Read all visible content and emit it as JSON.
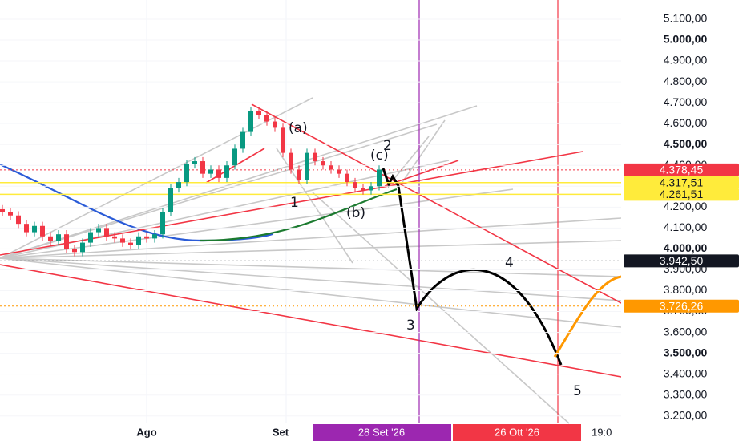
{
  "chart_data": {
    "type": "candlestick",
    "open": [
      4190,
      4175,
      4160,
      4120,
      4080,
      4110,
      4060,
      4040,
      4070,
      4000,
      3985,
      4030,
      4080,
      4100,
      4060,
      4050,
      4030,
      4020,
      4060,
      4050,
      4070,
      4175,
      4290,
      4320,
      4405,
      4420,
      4360,
      4380,
      4340,
      4400,
      4480,
      4560,
      4660,
      4640,
      4610,
      4580,
      4460,
      4380,
      4330,
      4460,
      4420,
      4400,
      4380,
      4360,
      4320,
      4290,
      4280,
      4300
    ],
    "high": [
      4210,
      4195,
      4180,
      4140,
      4130,
      4130,
      4080,
      4090,
      4090,
      4020,
      4050,
      4100,
      4120,
      4120,
      4080,
      4070,
      4050,
      4080,
      4080,
      4090,
      4195,
      4310,
      4340,
      4425,
      4440,
      4440,
      4400,
      4400,
      4420,
      4500,
      4580,
      4680,
      4680,
      4660,
      4630,
      4600,
      4480,
      4400,
      4480,
      4480,
      4440,
      4420,
      4400,
      4380,
      4340,
      4310,
      4320,
      4400
    ],
    "low": [
      4155,
      4140,
      4100,
      4060,
      4060,
      4040,
      4020,
      4020,
      3980,
      3965,
      3965,
      4010,
      4060,
      4040,
      4030,
      4010,
      4000,
      4000,
      4030,
      4030,
      4050,
      4155,
      4270,
      4300,
      4385,
      4340,
      4340,
      4320,
      4320,
      4380,
      4460,
      4540,
      4620,
      4590,
      4560,
      4440,
      4360,
      4310,
      4310,
      4400,
      4380,
      4360,
      4340,
      4300,
      4270,
      4260,
      4260,
      4280
    ],
    "close": [
      4175,
      4160,
      4120,
      4080,
      4110,
      4060,
      4040,
      4070,
      4000,
      3985,
      4030,
      4080,
      4100,
      4060,
      4050,
      4030,
      4020,
      4060,
      4050,
      4070,
      4175,
      4290,
      4320,
      4405,
      4420,
      4360,
      4380,
      4340,
      4400,
      4480,
      4560,
      4660,
      4640,
      4610,
      4580,
      4460,
      4380,
      4330,
      4460,
      4420,
      4400,
      4380,
      4360,
      4320,
      4290,
      4280,
      4300,
      4380
    ],
    "up_color": "#089981",
    "down_color": "#f23645",
    "ylim": [
      3080,
      5192
    ],
    "yticks": [
      {
        "value": 3200,
        "label": "3.200,00"
      },
      {
        "value": 3300,
        "label": "3.300,00"
      },
      {
        "value": 3400,
        "label": "3.400,00"
      },
      {
        "value": 3500,
        "label": "3.500,00"
      },
      {
        "value": 3600,
        "label": "3.600,00"
      },
      {
        "value": 3700,
        "label": "3.700,00"
      },
      {
        "value": 3800,
        "label": "3.800,00"
      },
      {
        "value": 3900,
        "label": "3.900,00"
      },
      {
        "value": 4000,
        "label": "4.000,00"
      },
      {
        "value": 4100,
        "label": "4.100,00"
      },
      {
        "value": 4200,
        "label": "4.200,00"
      },
      {
        "value": 4300,
        "label": "4.300,00"
      },
      {
        "value": 4400,
        "label": "4.400,00"
      },
      {
        "value": 4500,
        "label": "4.500,00"
      },
      {
        "value": 4600,
        "label": "4.600,00"
      },
      {
        "value": 4700,
        "label": "4.700,00"
      },
      {
        "value": 4800,
        "label": "4.800,00"
      },
      {
        "value": 4900,
        "label": "4.900,00"
      },
      {
        "value": 5000,
        "label": "5.000,00"
      },
      {
        "value": 5100,
        "label": "5.100,00"
      }
    ],
    "price_tags": [
      {
        "value": 4378.45,
        "label": "4.378,45",
        "color": "#f23645"
      },
      {
        "value": 4317.51,
        "label": "4.317,51",
        "color": "#ffeb3b"
      },
      {
        "value": 4261.51,
        "label": "4.261,51",
        "color": "#ffeb3b"
      },
      {
        "value": 3942.5,
        "label": "3.942,50",
        "color": "#131722"
      },
      {
        "value": 3726.26,
        "label": "3.726,26",
        "color": "#ff9800"
      }
    ],
    "x_labels": [
      "Ago",
      "Set",
      "28 Set '26",
      "26 Ott '26",
      "19:0"
    ],
    "annotations": [
      "(a)",
      "(b)",
      "(c)",
      "1",
      "2",
      "3",
      "4",
      "5"
    ]
  }
}
